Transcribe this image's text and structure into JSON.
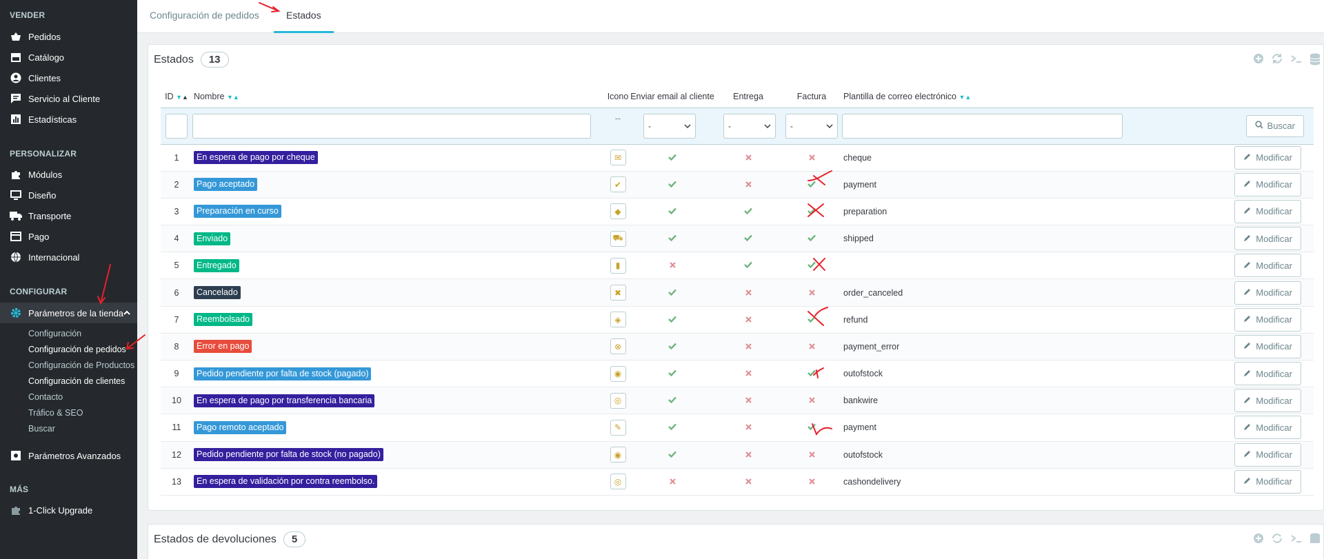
{
  "sidebar": {
    "sections": {
      "vender": "VENDER",
      "personalizar": "PERSONALIZAR",
      "configurar": "CONFIGURAR",
      "mas": "MÁS"
    },
    "items": {
      "pedidos": "Pedidos",
      "catalogo": "Catálogo",
      "clientes": "Clientes",
      "servicio": "Servicio al Cliente",
      "estadisticas": "Estadísticas",
      "modulos": "Módulos",
      "diseno": "Diseño",
      "transporte": "Transporte",
      "pago": "Pago",
      "internacional": "Internacional",
      "parametros": "Parámetros de la tienda",
      "avanzados": "Parámetros Avanzados",
      "upgrade": "1-Click Upgrade"
    },
    "submenu": [
      "Configuración",
      "Configuración de pedidos",
      "Configuración de Productos",
      "Configuración de clientes",
      "Contacto",
      "Tráfico & SEO",
      "Buscar"
    ]
  },
  "tabs": {
    "config": "Configuración de pedidos",
    "estados": "Estados"
  },
  "panel1": {
    "title": "Estados",
    "count": "13"
  },
  "panel2": {
    "title": "Estados de devoluciones",
    "count": "5"
  },
  "table": {
    "headers": {
      "id": "ID",
      "nombre": "Nombre",
      "icono": "Icono",
      "email": "Enviar email al cliente",
      "entrega": "Entrega",
      "factura": "Factura",
      "plantilla": "Plantilla de correo electrónico"
    },
    "filter": {
      "icon_dash": "--",
      "select_dash": "-",
      "search": "Buscar"
    },
    "action_label": "Modificar",
    "rows": [
      {
        "id": "1",
        "name": "En espera de pago por cheque",
        "color": "#4169e1",
        "bg": "#34209e",
        "icon": "✉",
        "email": true,
        "delivery": false,
        "invoice": false,
        "tpl": "cheque"
      },
      {
        "id": "2",
        "name": "Pago aceptado",
        "bg": "#3498d8",
        "icon": "✔",
        "email": true,
        "delivery": false,
        "invoice": true,
        "tpl": "payment"
      },
      {
        "id": "3",
        "name": "Preparación en curso",
        "bg": "#3498d8",
        "icon": "◆",
        "email": true,
        "delivery": true,
        "invoice": true,
        "tpl": "preparation"
      },
      {
        "id": "4",
        "name": "Enviado",
        "bg": "#01b887",
        "icon": "⛟",
        "email": true,
        "delivery": true,
        "invoice": true,
        "tpl": "shipped"
      },
      {
        "id": "5",
        "name": "Entregado",
        "bg": "#01b887",
        "icon": "▮",
        "email": false,
        "delivery": true,
        "invoice": true,
        "tpl": ""
      },
      {
        "id": "6",
        "name": "Cancelado",
        "bg": "#2c3e50",
        "icon": "✖",
        "email": true,
        "delivery": false,
        "invoice": false,
        "tpl": "order_canceled"
      },
      {
        "id": "7",
        "name": "Reembolsado",
        "bg": "#01b887",
        "icon": "◈",
        "email": true,
        "delivery": false,
        "invoice": true,
        "tpl": "refund"
      },
      {
        "id": "8",
        "name": "Error en pago",
        "bg": "#e74c3c",
        "icon": "⊗",
        "email": true,
        "delivery": false,
        "invoice": false,
        "tpl": "payment_error"
      },
      {
        "id": "9",
        "name": "Pedido pendiente por falta de stock (pagado)",
        "bg": "#3498d8",
        "icon": "◉",
        "email": true,
        "delivery": false,
        "invoice": true,
        "tpl": "outofstock"
      },
      {
        "id": "10",
        "name": "En espera de pago por transferencia bancaria",
        "bg": "#34209e",
        "icon": "◎",
        "email": true,
        "delivery": false,
        "invoice": false,
        "tpl": "bankwire"
      },
      {
        "id": "11",
        "name": "Pago remoto aceptado",
        "bg": "#3498d8",
        "icon": "✎",
        "email": true,
        "delivery": false,
        "invoice": true,
        "tpl": "payment"
      },
      {
        "id": "12",
        "name": "Pedido pendiente por falta de stock (no pagado)",
        "bg": "#34209e",
        "icon": "◉",
        "email": true,
        "delivery": false,
        "invoice": false,
        "tpl": "outofstock"
      },
      {
        "id": "13",
        "name": "En espera de validación por contra reembolso.",
        "bg": "#34209e",
        "icon": "◎",
        "email": false,
        "delivery": false,
        "invoice": false,
        "tpl": "cashondelivery"
      }
    ]
  },
  "colors": {
    "accent": "#25b9d7",
    "sidebar": "#25292d",
    "ok": "#70b580",
    "no": "#e08f95"
  }
}
